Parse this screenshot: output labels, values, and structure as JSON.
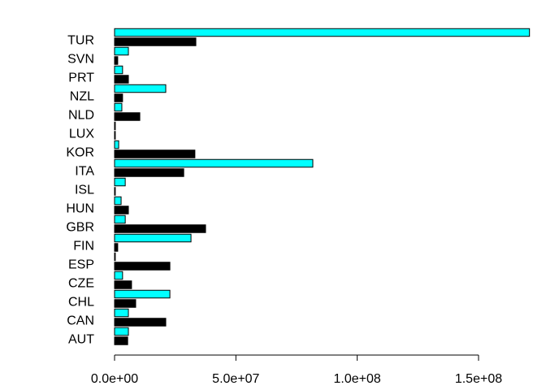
{
  "chart_data": {
    "type": "grouped-hbar",
    "categories": [
      "AUT",
      "CAN",
      "CHL",
      "CZE",
      "ESP",
      "FIN",
      "GBR",
      "HUN",
      "ISL",
      "ITA",
      "KOR",
      "LUX",
      "NLD",
      "NZL",
      "PRT",
      "SVN",
      "TUR"
    ],
    "series": [
      {
        "color": "#000000",
        "values": [
          5400000,
          21100000,
          8700000,
          7000000,
          22800000,
          1300000,
          37500000,
          5700000,
          300000,
          28500000,
          33100000,
          300000,
          10400000,
          3300000,
          5700000,
          1300000,
          33500000
        ]
      },
      {
        "color": "#00ffff",
        "values": [
          5700000,
          5700000,
          22800000,
          3300000,
          300000,
          31500000,
          4400000,
          2700000,
          4400000,
          81700000,
          1700000,
          300000,
          3000000,
          21100000,
          3300000,
          5700000,
          171000000
        ]
      }
    ],
    "xlim": [
      0,
      171000000
    ],
    "xticks": [
      {
        "value": 0,
        "label": "0.0e+00"
      },
      {
        "value": 50000000,
        "label": "5.0e+07"
      },
      {
        "value": 100000000,
        "label": "1.0e+08"
      },
      {
        "value": 150000000,
        "label": "1.5e+08"
      }
    ]
  }
}
